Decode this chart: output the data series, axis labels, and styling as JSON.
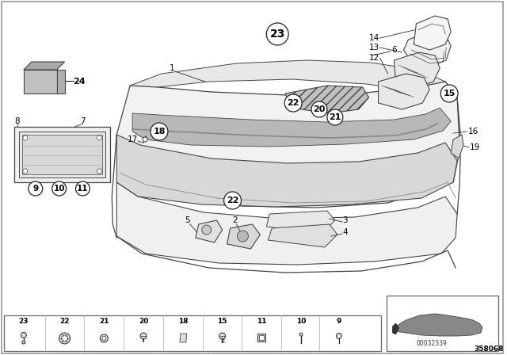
{
  "bg_color": "#ffffff",
  "border_color": "#999999",
  "line_color": "#444444",
  "dark_line": "#222222",
  "label_color": "#000000",
  "fig_width": 6.4,
  "fig_height": 4.48,
  "bottom_ref": "00032339",
  "bottom_model": "358068",
  "bumper_fill": "#f2f2f2",
  "bumper_edge": "#444444",
  "strip_fill": "#e0e0e0",
  "dark_fill": "#c8c8c8",
  "part_fill": "#eeeeee"
}
